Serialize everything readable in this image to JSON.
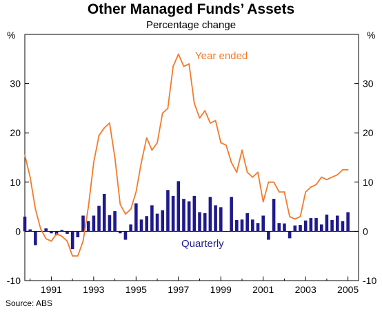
{
  "title": "Other Managed Funds’ Assets",
  "subtitle": "Percentage change",
  "source": "Source: ABS",
  "colors": {
    "line": "#f47a2a",
    "bar": "#1f1a8c",
    "axis": "#000000",
    "grid": "#000000"
  },
  "chart_data": {
    "type": "bar+line",
    "title": "Other Managed Funds’ Assets",
    "subtitle": "Percentage change",
    "ylabel_left": "%",
    "ylabel_right": "%",
    "ylim": [
      -10,
      40
    ],
    "yticks": [
      -10,
      0,
      10,
      20,
      30
    ],
    "xlim": [
      1989.75,
      2005.5
    ],
    "xticks": [
      1991,
      1993,
      1995,
      1997,
      1999,
      2001,
      2003,
      2005
    ],
    "grid": false,
    "annotations": [
      {
        "text": "Year ended",
        "series": "year_ended"
      },
      {
        "text": "Quarterly",
        "series": "quarterly"
      }
    ],
    "series": [
      {
        "name": "Year ended",
        "key": "year_ended",
        "type": "line",
        "x": [
          1989.75,
          1990.0,
          1990.25,
          1990.5,
          1990.75,
          1991.0,
          1991.25,
          1991.5,
          1991.75,
          1992.0,
          1992.25,
          1992.5,
          1992.75,
          1993.0,
          1993.25,
          1993.5,
          1993.75,
          1994.0,
          1994.25,
          1994.5,
          1994.75,
          1995.0,
          1995.25,
          1995.5,
          1995.75,
          1996.0,
          1996.25,
          1996.5,
          1996.75,
          1997.0,
          1997.25,
          1997.5,
          1997.75,
          1998.0,
          1998.25,
          1998.5,
          1998.75,
          1999.0,
          1999.25,
          1999.5,
          1999.75,
          2000.0,
          2000.25,
          2000.5,
          2000.75,
          2001.0,
          2001.25,
          2001.5,
          2001.75,
          2002.0,
          2002.25,
          2002.5,
          2002.75,
          2003.0,
          2003.25,
          2003.5,
          2003.75,
          2004.0,
          2004.25,
          2004.5,
          2004.75,
          2005.0
        ],
        "values": [
          15.5,
          11,
          4.5,
          0.5,
          -1.5,
          -2,
          -0.5,
          -1,
          -2,
          -5,
          -5,
          -2,
          5,
          14,
          19.5,
          21,
          22,
          15,
          5.5,
          3.5,
          4.5,
          8,
          14,
          19,
          16.5,
          18,
          24,
          25,
          33.5,
          36,
          33.5,
          34,
          26,
          23,
          24.5,
          22,
          22.5,
          18,
          17.5,
          14,
          12,
          16.5,
          12,
          11,
          12,
          6,
          10,
          10,
          8,
          8,
          3,
          2.5,
          3,
          8,
          9,
          9.5,
          11,
          10.5,
          11,
          11.5,
          12.5,
          12.5
        ]
      },
      {
        "name": "Quarterly",
        "key": "quarterly",
        "type": "bar",
        "x": [
          1989.75,
          1990.0,
          1990.25,
          1990.5,
          1990.75,
          1991.0,
          1991.25,
          1991.5,
          1991.75,
          1992.0,
          1992.25,
          1992.5,
          1992.75,
          1993.0,
          1993.25,
          1993.5,
          1993.75,
          1994.0,
          1994.25,
          1994.5,
          1994.75,
          1995.0,
          1995.25,
          1995.5,
          1995.75,
          1996.0,
          1996.25,
          1996.5,
          1996.75,
          1997.0,
          1997.25,
          1997.5,
          1997.75,
          1998.0,
          1998.25,
          1998.5,
          1998.75,
          1999.0,
          1999.25,
          1999.5,
          1999.75,
          2000.0,
          2000.25,
          2000.5,
          2000.75,
          2001.0,
          2001.25,
          2001.5,
          2001.75,
          2002.0,
          2002.25,
          2002.5,
          2002.75,
          2003.0,
          2003.25,
          2003.5,
          2003.75,
          2004.0,
          2004.25,
          2004.5,
          2004.75,
          2005.0
        ],
        "values": [
          3,
          0.4,
          -2.8,
          0,
          0.6,
          -0.4,
          -0.8,
          0.3,
          -0.5,
          -3.6,
          -1.2,
          3.2,
          2.1,
          3.2,
          5.2,
          7.6,
          3.3,
          4.1,
          -0.4,
          -1.7,
          1.4,
          5.7,
          2.4,
          3.1,
          5.3,
          3.6,
          4.3,
          8.4,
          7.2,
          10.2,
          6.6,
          6.1,
          7.2,
          3.9,
          3.7,
          7,
          5.3,
          4.9,
          0,
          7,
          2.3,
          2.4,
          3.7,
          2.4,
          1.7,
          3.2,
          -1.7,
          6.6,
          1.7,
          1.6,
          -1.4,
          1.2,
          1.3,
          2.2,
          2.7,
          2.7,
          1.4,
          3.4,
          2.3,
          3.2,
          2.1,
          3.9
        ]
      }
    ]
  }
}
